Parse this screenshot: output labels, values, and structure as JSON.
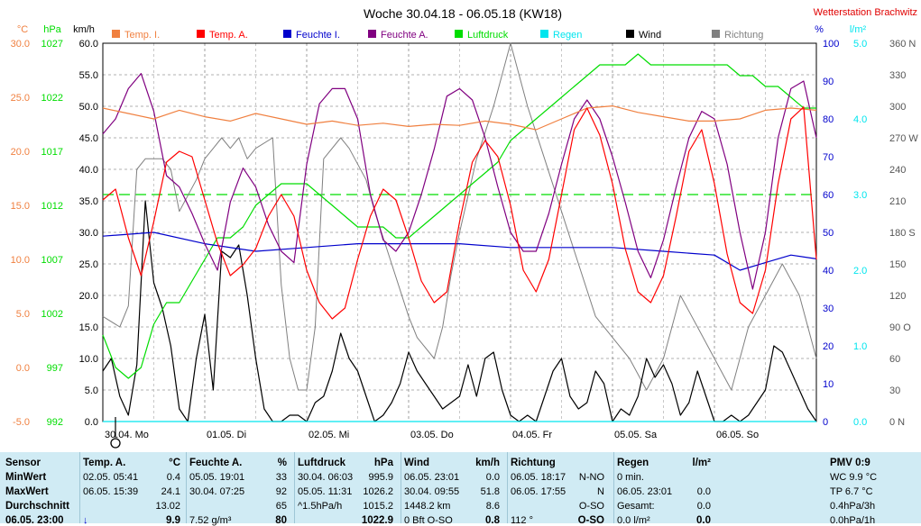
{
  "header": {
    "title": "Woche 30.04.18 - 06.05.18 (KW18)",
    "station": "Wetterstation Brachwitz"
  },
  "colors": {
    "temp_i": "#f08040",
    "temp_a": "#ff0000",
    "feuchte_i": "#0000cc",
    "feuchte_a": "#800080",
    "luftdruck": "#00dd00",
    "regen": "#00e5ee",
    "wind": "#000000",
    "richtung": "#808080"
  },
  "chart_data": {
    "type": "line",
    "title": "Woche 30.04.18 - 06.05.18 (KW18)",
    "grid": true,
    "legend_position": "top",
    "axes": {
      "temp_c": {
        "unit": "°C",
        "ticks": [
          "30.0",
          "25.0",
          "20.0",
          "15.0",
          "10.0",
          "5.0",
          "0.0",
          "-5.0"
        ],
        "ylim": [
          -5,
          30
        ]
      },
      "pressure_hpa": {
        "unit": "hPa",
        "ticks": [
          "1027",
          "1022",
          "1017",
          "1012",
          "1007",
          "1002",
          "997",
          "992"
        ],
        "ylim": [
          992,
          1027
        ]
      },
      "wind_kmh": {
        "unit": "km/h",
        "ticks": [
          "60.0",
          "55.0",
          "50.0",
          "45.0",
          "40.0",
          "35.0",
          "30.0",
          "25.0",
          "20.0",
          "15.0",
          "10.0",
          "5.0",
          "0.0"
        ],
        "ylim": [
          0,
          60
        ]
      },
      "humidity_pct": {
        "unit": "%",
        "ticks": [
          "100",
          "90",
          "80",
          "70",
          "60",
          "50",
          "40",
          "30",
          "20",
          "10",
          "0"
        ],
        "ylim": [
          0,
          100
        ]
      },
      "rain_lm2": {
        "unit": "l/m²",
        "ticks": [
          "5.0",
          "4.0",
          "3.0",
          "2.0",
          "1.0",
          "0.0"
        ],
        "ylim": [
          0,
          5
        ]
      },
      "direction": {
        "ticks": [
          "360 N",
          "330",
          "300",
          "270 W",
          "240",
          "210",
          "180 S",
          "150",
          "120",
          "90 O",
          "60",
          "30",
          "0 N"
        ],
        "ylim": [
          0,
          360
        ]
      }
    },
    "x_labels": [
      "30.04.  Mo",
      "01.05.  Di",
      "02.05.  Mi",
      "03.05.  Do",
      "04.05.  Fr",
      "05.05.  Sa",
      "06.05.  So"
    ],
    "x_range_hours": [
      0,
      168
    ],
    "series": [
      {
        "name": "Temp. I.",
        "key": "temp_i",
        "axis": "temp_c",
        "x": [
          0,
          6,
          12,
          18,
          24,
          30,
          36,
          42,
          48,
          54,
          60,
          66,
          72,
          78,
          84,
          90,
          96,
          102,
          108,
          114,
          120,
          126,
          132,
          138,
          144,
          150,
          156,
          162,
          168
        ],
        "y": [
          24.0,
          23.5,
          23.0,
          23.8,
          23.2,
          22.8,
          23.5,
          23.0,
          22.5,
          22.8,
          22.4,
          22.6,
          22.3,
          22.5,
          22.4,
          22.8,
          22.5,
          22.0,
          23.0,
          24.0,
          24.2,
          23.6,
          23.2,
          22.8,
          22.8,
          23.0,
          23.8,
          24.0,
          23.8
        ]
      },
      {
        "name": "Temp. A.",
        "key": "temp_a",
        "axis": "temp_c",
        "x": [
          0,
          3,
          6,
          9,
          12,
          15,
          18,
          21,
          24,
          27,
          30,
          33,
          36,
          39,
          42,
          45,
          48,
          51,
          54,
          57,
          60,
          63,
          66,
          69,
          72,
          75,
          78,
          81,
          84,
          87,
          90,
          93,
          96,
          99,
          102,
          105,
          108,
          111,
          114,
          117,
          120,
          123,
          126,
          129,
          132,
          135,
          138,
          141,
          144,
          147,
          150,
          153,
          156,
          159,
          162,
          165,
          168
        ],
        "y": [
          15.5,
          16.5,
          12.0,
          8.5,
          13.5,
          19.0,
          20.0,
          19.5,
          15.5,
          11.5,
          8.5,
          9.5,
          11.0,
          14.0,
          16.0,
          14.0,
          9.0,
          6.0,
          4.5,
          5.5,
          10.0,
          14.0,
          16.5,
          15.5,
          12.0,
          8.0,
          6.0,
          7.0,
          13.5,
          19.0,
          21.0,
          19.5,
          15.0,
          9.0,
          7.0,
          10.0,
          16.0,
          22.0,
          24.0,
          21.5,
          17.0,
          11.0,
          7.0,
          6.0,
          8.5,
          14.0,
          20.0,
          22.0,
          17.0,
          10.5,
          6.0,
          5.0,
          9.0,
          17.0,
          23.0,
          24.1,
          10.0
        ]
      },
      {
        "name": "Feuchte I.",
        "key": "feuchte_i",
        "axis": "humidity_pct",
        "x": [
          0,
          12,
          24,
          36,
          48,
          60,
          72,
          84,
          96,
          108,
          120,
          132,
          144,
          150,
          156,
          162,
          168
        ],
        "y": [
          49,
          50,
          47,
          45,
          46,
          47,
          47,
          47,
          46,
          46,
          46,
          45,
          44,
          40,
          42,
          44,
          43
        ]
      },
      {
        "name": "Feuchte A.",
        "key": "feuchte_a",
        "axis": "humidity_pct",
        "x": [
          0,
          3,
          6,
          9,
          12,
          15,
          18,
          21,
          24,
          27,
          30,
          33,
          36,
          39,
          42,
          45,
          48,
          51,
          54,
          57,
          60,
          63,
          66,
          69,
          72,
          75,
          78,
          81,
          84,
          87,
          90,
          93,
          96,
          99,
          102,
          105,
          108,
          111,
          114,
          117,
          120,
          123,
          126,
          129,
          132,
          135,
          138,
          141,
          144,
          147,
          150,
          153,
          156,
          159,
          162,
          165,
          168
        ],
        "y": [
          76,
          80,
          88,
          92,
          82,
          65,
          62,
          55,
          47,
          40,
          58,
          67,
          62,
          52,
          45,
          42,
          68,
          84,
          88,
          88,
          80,
          60,
          48,
          45,
          50,
          60,
          72,
          86,
          88,
          85,
          75,
          62,
          50,
          45,
          45,
          55,
          68,
          80,
          85,
          80,
          70,
          58,
          45,
          38,
          48,
          62,
          75,
          82,
          80,
          68,
          50,
          35,
          50,
          75,
          88,
          90,
          75
        ]
      },
      {
        "name": "Luftdruck",
        "key": "luftdruck",
        "axis": "pressure_hpa",
        "x": [
          0,
          3,
          6,
          9,
          12,
          15,
          18,
          21,
          24,
          27,
          30,
          33,
          36,
          39,
          42,
          45,
          48,
          51,
          54,
          57,
          60,
          63,
          66,
          69,
          72,
          75,
          78,
          81,
          84,
          87,
          90,
          93,
          96,
          99,
          102,
          105,
          108,
          111,
          114,
          117,
          120,
          123,
          126,
          129,
          132,
          135,
          138,
          141,
          144,
          147,
          150,
          153,
          156,
          159,
          162,
          165,
          168
        ],
        "y": [
          1000,
          997,
          996,
          997,
          1001,
          1003,
          1003,
          1005,
          1007,
          1009,
          1009,
          1010,
          1012,
          1013,
          1014,
          1014,
          1014,
          1013,
          1012,
          1011,
          1010,
          1010,
          1010,
          1009,
          1009,
          1010,
          1011,
          1012,
          1013,
          1014,
          1015,
          1016,
          1018,
          1019,
          1020,
          1021,
          1022,
          1023,
          1024,
          1025,
          1025,
          1025,
          1026,
          1025,
          1025,
          1025,
          1025,
          1025,
          1025,
          1025,
          1024,
          1024,
          1023,
          1023,
          1022,
          1021,
          1021
        ]
      },
      {
        "name": "Regen",
        "key": "regen",
        "axis": "rain_lm2",
        "x": [
          0,
          168
        ],
        "y": [
          0,
          0
        ]
      },
      {
        "name": "Wind",
        "key": "wind",
        "axis": "wind_kmh",
        "x": [
          0,
          2,
          4,
          6,
          8,
          10,
          12,
          14,
          16,
          18,
          20,
          22,
          24,
          26,
          28,
          30,
          32,
          34,
          36,
          38,
          40,
          42,
          44,
          46,
          48,
          50,
          52,
          54,
          56,
          58,
          60,
          62,
          64,
          66,
          68,
          70,
          72,
          74,
          76,
          78,
          80,
          82,
          84,
          86,
          88,
          90,
          92,
          94,
          96,
          98,
          100,
          102,
          104,
          106,
          108,
          110,
          112,
          114,
          116,
          118,
          120,
          122,
          124,
          126,
          128,
          130,
          132,
          134,
          136,
          138,
          140,
          142,
          144,
          146,
          148,
          150,
          152,
          154,
          156,
          158,
          160,
          162,
          164,
          166,
          168
        ],
        "y": [
          8,
          10,
          4,
          1,
          9,
          35,
          22,
          18,
          12,
          2,
          0,
          10,
          17,
          5,
          27,
          26,
          28,
          20,
          10,
          2,
          0,
          0,
          1,
          1,
          0,
          3,
          4,
          8,
          14,
          10,
          8,
          4,
          0,
          1,
          3,
          6,
          11,
          8,
          6,
          4,
          2,
          3,
          4,
          9,
          4,
          10,
          11,
          5,
          1,
          0,
          1,
          0,
          4,
          8,
          10,
          4,
          2,
          3,
          8,
          6,
          0,
          2,
          1,
          4,
          10,
          7,
          9,
          6,
          1,
          3,
          8,
          4,
          0,
          0,
          1,
          0,
          1,
          3,
          5,
          12,
          11,
          8,
          5,
          2,
          0
        ]
      },
      {
        "name": "Richtung",
        "key": "richtung",
        "axis": "direction",
        "x": [
          0,
          4,
          6,
          8,
          10,
          14,
          16,
          18,
          22,
          24,
          26,
          28,
          30,
          32,
          34,
          36,
          40,
          42,
          44,
          46,
          48,
          50,
          52,
          56,
          58,
          62,
          64,
          68,
          72,
          74,
          78,
          80,
          82,
          84,
          88,
          92,
          96,
          100,
          104,
          108,
          112,
          116,
          120,
          124,
          128,
          132,
          136,
          140,
          144,
          148,
          152,
          156,
          160,
          164,
          168
        ],
        "y": [
          100,
          90,
          110,
          240,
          250,
          250,
          240,
          200,
          230,
          250,
          260,
          270,
          260,
          270,
          250,
          260,
          270,
          130,
          60,
          30,
          30,
          90,
          250,
          270,
          260,
          230,
          200,
          150,
          100,
          80,
          60,
          90,
          140,
          180,
          250,
          300,
          360,
          300,
          250,
          200,
          150,
          100,
          80,
          60,
          30,
          60,
          120,
          90,
          60,
          30,
          90,
          120,
          150,
          120,
          60
        ]
      }
    ],
    "reference_lines": [
      {
        "key": "luftdruck",
        "axis": "pressure_hpa",
        "value": 1013,
        "dashed": true
      }
    ]
  },
  "table": {
    "sections": [
      {
        "key": "sensor",
        "title": "Sensor",
        "unit": "",
        "rows": [
          "MinWert",
          "MaxWert",
          "Durchschnitt",
          "06.05. 23:00"
        ]
      },
      {
        "key": "temp",
        "title": "Temp. A.",
        "unit": "°C",
        "rows": [
          [
            "02.05.   05:41",
            "0.4"
          ],
          [
            "06.05.   15:39",
            "24.1"
          ],
          [
            "",
            "13.02"
          ],
          [
            "↓",
            "9.9"
          ]
        ]
      },
      {
        "key": "feuchte",
        "title": "Feuchte A.",
        "unit": "%",
        "rows": [
          [
            "05.05.   19:01",
            "33"
          ],
          [
            "30.04.   07:25",
            "92"
          ],
          [
            "",
            "65"
          ],
          [
            "7.52 g/m³",
            "80"
          ]
        ]
      },
      {
        "key": "druck",
        "title": "Luftdruck",
        "unit": "hPa",
        "rows": [
          [
            "30.04.   06:03",
            "995.9"
          ],
          [
            "05.05.   11:31",
            "1026.2"
          ],
          [
            "^1.5hPa/h",
            "1015.2"
          ],
          [
            "",
            "1022.9"
          ]
        ]
      },
      {
        "key": "wind",
        "title": "Wind",
        "unit": "km/h",
        "rows": [
          [
            "06.05.   23:01",
            "0.0"
          ],
          [
            "30.04.   09:55",
            "51.8"
          ],
          [
            "1448.2 km",
            "8.6"
          ],
          [
            "0 Bft O-SO",
            "0.8"
          ]
        ]
      },
      {
        "key": "richtung",
        "title": "Richtung",
        "unit": "",
        "rows": [
          [
            "06.05.   18:17",
            "N-NO"
          ],
          [
            "06.05.   17:55",
            "N"
          ],
          [
            "",
            "O-SO"
          ],
          [
            "112 °",
            "O-SO"
          ]
        ]
      },
      {
        "key": "regen",
        "title": "Regen",
        "unit": "l/m²",
        "rows": [
          [
            "0 min.",
            ""
          ],
          [
            "06.05.   23:01",
            "0.0"
          ],
          [
            "Gesamt:",
            "0.0"
          ],
          [
            "0.0 l/m²",
            "0.0"
          ]
        ]
      },
      {
        "key": "pmv",
        "title": "PMV 0:9",
        "unit": "",
        "rows": [
          "WC 9.9 °C",
          "TP 6.7 °C",
          "0.4hPa/3h",
          "0.0hPa/1h"
        ]
      }
    ]
  }
}
